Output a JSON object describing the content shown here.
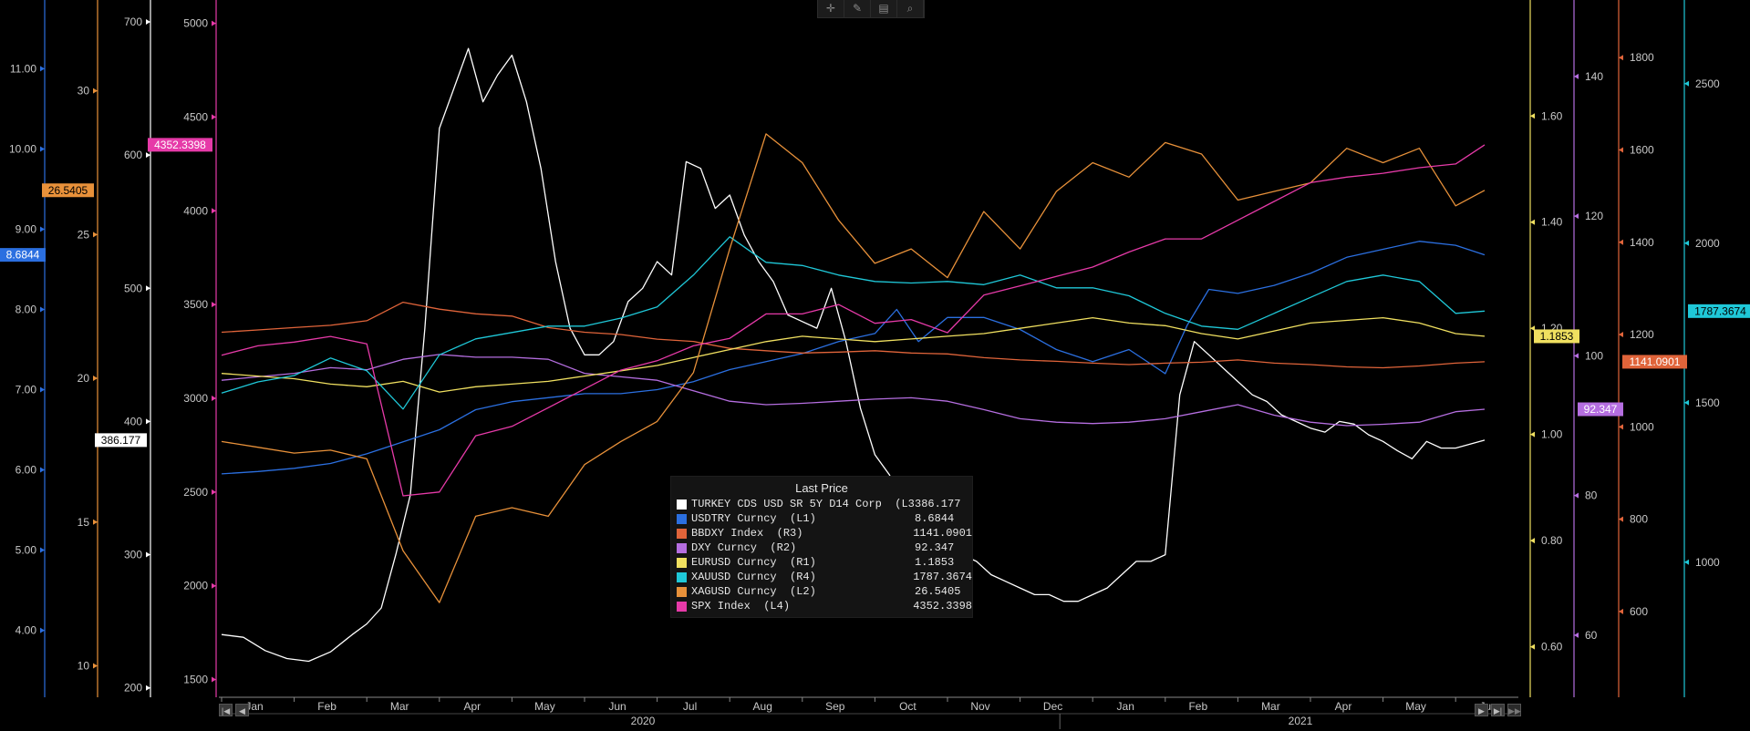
{
  "toolbar": {
    "tools": [
      {
        "name": "crosshair",
        "glyph": "✛"
      },
      {
        "name": "draw",
        "glyph": "✎"
      },
      {
        "name": "table",
        "glyph": "▤"
      },
      {
        "name": "zoom",
        "glyph": "⌕"
      }
    ]
  },
  "nav": {
    "first": "◀◀",
    "prev": "◀",
    "next": "▶",
    "last": "▶▶",
    "end": "▶|"
  },
  "colors": {
    "turkey_cds": "#ffffff",
    "usdtry": "#2b6fe0",
    "bbdxy": "#e0643a",
    "dxy": "#b56ee0",
    "eurusd": "#f0e060",
    "xauusd": "#1fc8d8",
    "xagusd": "#e8913a",
    "spx": "#e63aa8"
  },
  "chart_data": {
    "type": "line",
    "x_axis": {
      "months": [
        "Jan",
        "Feb",
        "Mar",
        "Apr",
        "May",
        "Jun",
        "Jul",
        "Aug",
        "Sep",
        "Oct",
        "Nov",
        "Dec",
        "Jan",
        "Feb",
        "Mar",
        "Apr",
        "May",
        "Jun"
      ],
      "years": [
        "2020",
        "2021"
      ]
    },
    "axes": {
      "L1": {
        "series": "USDTRY Curncy",
        "range": [
          3.2,
          11.8
        ],
        "ticks": [
          "4.00",
          "5.00",
          "6.00",
          "7.00",
          "8.00",
          "9.00",
          "10.00",
          "11.00"
        ],
        "tick_values": [
          4,
          5,
          6,
          7,
          8,
          9,
          10,
          11
        ],
        "color": "#2b6fe0"
      },
      "L2": {
        "series": "XAGUSD Curncy",
        "range": [
          9,
          33
        ],
        "ticks": [
          "10",
          "15",
          "20",
          "25",
          "30"
        ],
        "tick_values": [
          10,
          15,
          20,
          25,
          30
        ],
        "color": "#e8913a"
      },
      "L3": {
        "series": "TURKEY CDS USD SR 5Y D14 Corp",
        "range": [
          195,
          713
        ],
        "ticks": [
          "200",
          "300",
          "400",
          "500",
          "600",
          "700"
        ],
        "tick_values": [
          200,
          300,
          400,
          500,
          600,
          700
        ],
        "color": "#ffffff"
      },
      "L4": {
        "series": "SPX Index",
        "range": [
          1420,
          5100
        ],
        "ticks": [
          "1500",
          "2000",
          "2500",
          "3000",
          "3500",
          "4000",
          "4500",
          "5000"
        ],
        "tick_values": [
          1500,
          2000,
          2500,
          3000,
          3500,
          4000,
          4500,
          5000
        ],
        "color": "#e63aa8"
      },
      "R1": {
        "series": "EURUSD Curncy",
        "range": [
          0.51,
          1.81
        ],
        "ticks": [
          "0.60",
          "0.80",
          "1.00",
          "1.20",
          "1.40",
          "1.60"
        ],
        "tick_values": [
          0.6,
          0.8,
          1.0,
          1.2,
          1.4,
          1.6
        ],
        "color": "#f0e060"
      },
      "R2": {
        "series": "DXY Curncy",
        "range": [
          51.5,
          150.3
        ],
        "ticks": [
          "60",
          "80",
          "100",
          "120",
          "140"
        ],
        "tick_values": [
          60,
          80,
          100,
          120,
          140
        ],
        "color": "#b56ee0"
      },
      "R3": {
        "series": "BBDXY Index",
        "range": [
          420,
          1915
        ],
        "ticks": [
          "600",
          "800",
          "1000",
          "1200",
          "1400",
          "1600",
          "1800"
        ],
        "tick_values": [
          600,
          800,
          1000,
          1200,
          1400,
          1600,
          1800
        ],
        "color": "#e0643a"
      },
      "R4": {
        "series": "XAUUSD Curncy",
        "range": [
          585,
          2748
        ],
        "ticks": [
          "1000",
          "1500",
          "2000",
          "2500"
        ],
        "tick_values": [
          1000,
          1500,
          2000,
          2500
        ],
        "color": "#1fc8d8"
      }
    },
    "legend_title": "Last Price",
    "series": [
      {
        "key": "turkey_cds",
        "name": "TURKEY CDS USD SR 5Y D14 Corp  (L3)",
        "axis": "L3",
        "last": "386.177",
        "x": [
          0,
          0.3,
          0.6,
          0.9,
          1.2,
          1.5,
          1.8,
          2.0,
          2.2,
          2.4,
          2.6,
          2.8,
          3.0,
          3.2,
          3.4,
          3.6,
          3.8,
          4.0,
          4.2,
          4.4,
          4.6,
          4.8,
          5.0,
          5.2,
          5.4,
          5.6,
          5.8,
          6.0,
          6.2,
          6.4,
          6.6,
          6.8,
          7.0,
          7.2,
          7.4,
          7.6,
          7.8,
          8.0,
          8.2,
          8.4,
          8.6,
          8.8,
          9.0,
          9.2,
          9.4,
          9.6,
          9.8,
          10.0,
          10.2,
          10.4,
          10.6,
          10.8,
          11.0,
          11.2,
          11.4,
          11.6,
          11.8,
          12.0,
          12.2,
          12.4,
          12.6,
          12.8,
          13.0,
          13.2,
          13.4,
          13.6,
          13.8,
          14.0,
          14.2,
          14.4,
          14.6,
          14.8,
          15.0,
          15.2,
          15.4,
          15.6,
          15.8,
          16.0,
          16.2,
          16.4,
          16.6,
          16.8,
          17.0,
          17.2,
          17.4
        ],
        "y": [
          240,
          238,
          228,
          222,
          220,
          227,
          240,
          248,
          260,
          300,
          345,
          470,
          620,
          650,
          680,
          640,
          660,
          675,
          640,
          590,
          520,
          470,
          450,
          450,
          460,
          490,
          500,
          520,
          510,
          595,
          590,
          560,
          570,
          540,
          520,
          505,
          480,
          475,
          470,
          500,
          460,
          410,
          375,
          360,
          338,
          330,
          315,
          310,
          300,
          295,
          285,
          280,
          275,
          270,
          270,
          265,
          265,
          270,
          275,
          285,
          295,
          295,
          300,
          420,
          460,
          450,
          440,
          430,
          420,
          415,
          405,
          400,
          395,
          392,
          400,
          398,
          390,
          385,
          378,
          372,
          385,
          380,
          380,
          383,
          386
        ]
      },
      {
        "key": "usdtry",
        "name": "USDTRY Curncy  (L1)",
        "axis": "L1",
        "last": "8.6844",
        "x": [
          0,
          0.5,
          1.0,
          1.5,
          2.0,
          2.5,
          3.0,
          3.5,
          4.0,
          4.5,
          5.0,
          5.5,
          6.0,
          6.5,
          7.0,
          7.5,
          8.0,
          8.5,
          9.0,
          9.3,
          9.6,
          10.0,
          10.5,
          11.0,
          11.5,
          12.0,
          12.5,
          13.0,
          13.3,
          13.6,
          14.0,
          14.5,
          15.0,
          15.5,
          16.0,
          16.5,
          17.0,
          17.4
        ],
        "y": [
          5.95,
          5.98,
          6.02,
          6.08,
          6.2,
          6.35,
          6.5,
          6.75,
          6.85,
          6.9,
          6.95,
          6.95,
          7.0,
          7.1,
          7.25,
          7.35,
          7.45,
          7.6,
          7.7,
          8.0,
          7.6,
          7.9,
          7.9,
          7.75,
          7.5,
          7.35,
          7.5,
          7.2,
          7.8,
          8.25,
          8.2,
          8.3,
          8.45,
          8.65,
          8.75,
          8.85,
          8.8,
          8.68
        ]
      },
      {
        "key": "bbdxy",
        "name": "BBDXY Index  (R3)",
        "axis": "R3",
        "last": "1141.0901",
        "x": [
          0,
          0.5,
          1.0,
          1.5,
          2.0,
          2.5,
          3.0,
          3.5,
          4.0,
          4.5,
          5.0,
          5.5,
          6.0,
          6.5,
          7.0,
          7.5,
          8.0,
          8.5,
          9.0,
          9.5,
          10.0,
          10.5,
          11.0,
          11.5,
          12.0,
          12.5,
          13.0,
          13.5,
          14.0,
          14.5,
          15.0,
          15.5,
          16.0,
          16.5,
          17.0,
          17.4
        ],
        "y": [
          1205,
          1210,
          1215,
          1220,
          1230,
          1270,
          1255,
          1245,
          1240,
          1215,
          1205,
          1200,
          1190,
          1185,
          1170,
          1165,
          1160,
          1162,
          1165,
          1160,
          1158,
          1150,
          1145,
          1142,
          1138,
          1135,
          1138,
          1140,
          1145,
          1138,
          1135,
          1130,
          1128,
          1132,
          1138,
          1141
        ]
      },
      {
        "key": "dxy",
        "name": "DXY Curncy  (R2)",
        "axis": "R2",
        "last": "92.347",
        "x": [
          0,
          0.5,
          1.0,
          1.5,
          2.0,
          2.5,
          3.0,
          3.5,
          4.0,
          4.5,
          5.0,
          5.5,
          6.0,
          6.5,
          7.0,
          7.5,
          8.0,
          8.5,
          9.0,
          9.5,
          10.0,
          10.5,
          11.0,
          11.5,
          12.0,
          12.5,
          13.0,
          13.5,
          14.0,
          14.5,
          15.0,
          15.5,
          16.0,
          16.5,
          17.0,
          17.4
        ],
        "y": [
          96.5,
          97.0,
          97.5,
          98.3,
          98.0,
          99.5,
          100.2,
          99.8,
          99.8,
          99.5,
          97.5,
          97.0,
          96.5,
          95.0,
          93.5,
          93.0,
          93.2,
          93.5,
          93.8,
          94.0,
          93.5,
          92.3,
          91.0,
          90.5,
          90.3,
          90.5,
          91.0,
          92.0,
          93.0,
          91.5,
          90.5,
          90.0,
          90.2,
          90.5,
          92.0,
          92.35
        ]
      },
      {
        "key": "eurusd",
        "name": "EURUSD Curncy  (R1)",
        "axis": "R1",
        "last": "1.1853",
        "x": [
          0,
          0.5,
          1.0,
          1.5,
          2.0,
          2.5,
          3.0,
          3.5,
          4.0,
          4.5,
          5.0,
          5.5,
          6.0,
          6.5,
          7.0,
          7.5,
          8.0,
          8.5,
          9.0,
          9.5,
          10.0,
          10.5,
          11.0,
          11.5,
          12.0,
          12.5,
          13.0,
          13.5,
          14.0,
          14.5,
          15.0,
          15.5,
          16.0,
          16.5,
          17.0,
          17.4
        ],
        "y": [
          1.115,
          1.11,
          1.105,
          1.095,
          1.09,
          1.1,
          1.08,
          1.09,
          1.095,
          1.1,
          1.11,
          1.12,
          1.13,
          1.145,
          1.16,
          1.175,
          1.185,
          1.18,
          1.175,
          1.18,
          1.185,
          1.19,
          1.2,
          1.21,
          1.22,
          1.21,
          1.205,
          1.19,
          1.18,
          1.195,
          1.21,
          1.215,
          1.22,
          1.21,
          1.19,
          1.185
        ]
      },
      {
        "key": "xauusd",
        "name": "XAUUSD Curncy  (R4)",
        "axis": "R4",
        "last": "1787.3674",
        "x": [
          0,
          0.5,
          1.0,
          1.5,
          2.0,
          2.5,
          3.0,
          3.5,
          4.0,
          4.5,
          5.0,
          5.5,
          6.0,
          6.5,
          7.0,
          7.5,
          8.0,
          8.5,
          9.0,
          9.5,
          10.0,
          10.5,
          11.0,
          11.5,
          12.0,
          12.5,
          13.0,
          13.5,
          14.0,
          14.5,
          15.0,
          15.5,
          16.0,
          16.5,
          17.0,
          17.4
        ],
        "y": [
          1530,
          1565,
          1585,
          1640,
          1600,
          1480,
          1650,
          1700,
          1720,
          1740,
          1740,
          1765,
          1800,
          1900,
          2020,
          1940,
          1930,
          1900,
          1880,
          1875,
          1880,
          1870,
          1900,
          1860,
          1860,
          1835,
          1780,
          1740,
          1730,
          1780,
          1830,
          1880,
          1900,
          1880,
          1780,
          1787
        ]
      },
      {
        "key": "xagusd",
        "name": "XAGUSD Curncy  (L2)",
        "axis": "L2",
        "last": "26.5405",
        "x": [
          0,
          0.5,
          1.0,
          1.5,
          2.0,
          2.5,
          3.0,
          3.5,
          4.0,
          4.5,
          5.0,
          5.5,
          6.0,
          6.5,
          7.0,
          7.5,
          8.0,
          8.5,
          9.0,
          9.5,
          10.0,
          10.5,
          11.0,
          11.5,
          12.0,
          12.5,
          13.0,
          13.5,
          14.0,
          14.5,
          15.0,
          15.5,
          16.0,
          16.5,
          17.0,
          17.4
        ],
        "y": [
          17.8,
          17.6,
          17.4,
          17.5,
          17.2,
          14.0,
          12.2,
          15.2,
          15.5,
          15.2,
          17.0,
          17.8,
          18.5,
          20.2,
          24.5,
          28.5,
          27.5,
          25.5,
          24.0,
          24.5,
          23.5,
          25.8,
          24.5,
          26.5,
          27.5,
          27.0,
          28.2,
          27.8,
          26.2,
          26.5,
          26.8,
          28.0,
          27.5,
          28.0,
          26.0,
          26.54
        ]
      },
      {
        "key": "spx",
        "name": "SPX Index  (L4)",
        "axis": "L4",
        "last": "4352.3398",
        "x": [
          0,
          0.5,
          1.0,
          1.5,
          2.0,
          2.5,
          3.0,
          3.5,
          4.0,
          4.5,
          5.0,
          5.5,
          6.0,
          6.5,
          7.0,
          7.5,
          8.0,
          8.5,
          9.0,
          9.5,
          10.0,
          10.5,
          11.0,
          11.5,
          12.0,
          12.5,
          13.0,
          13.5,
          14.0,
          14.5,
          15.0,
          15.5,
          16.0,
          16.5,
          17.0,
          17.4
        ],
        "y": [
          3230,
          3280,
          3300,
          3330,
          3290,
          2480,
          2500,
          2800,
          2850,
          2950,
          3050,
          3150,
          3200,
          3280,
          3320,
          3450,
          3450,
          3500,
          3400,
          3420,
          3350,
          3550,
          3600,
          3650,
          3700,
          3780,
          3850,
          3850,
          3950,
          4050,
          4150,
          4180,
          4200,
          4230,
          4250,
          4352
        ]
      }
    ]
  }
}
